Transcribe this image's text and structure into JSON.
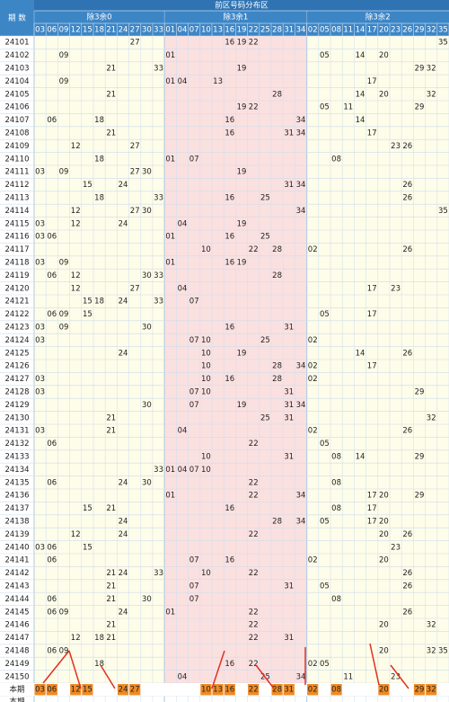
{
  "header": {
    "period_label": "期 数",
    "title": "前区号码分布区",
    "groups": [
      {
        "label": "除3余0",
        "columns": [
          "03",
          "06",
          "09",
          "12",
          "15",
          "18",
          "21",
          "24",
          "27",
          "30",
          "33"
        ]
      },
      {
        "label": "除3余1",
        "columns": [
          "01",
          "04",
          "07",
          "10",
          "13",
          "16",
          "19",
          "22",
          "25",
          "28",
          "31",
          "34"
        ]
      },
      {
        "label": "除3余2",
        "columns": [
          "02",
          "05",
          "08",
          "11",
          "14",
          "17",
          "20",
          "23",
          "26",
          "29",
          "32",
          "35"
        ]
      }
    ]
  },
  "rows": [
    {
      "period": "24101",
      "numbers": [
        "27",
        "16",
        "19",
        "22",
        "35"
      ]
    },
    {
      "period": "24102",
      "numbers": [
        "09",
        "01",
        "05",
        "14",
        "20"
      ]
    },
    {
      "period": "24103",
      "numbers": [
        "21",
        "33",
        "19",
        "29",
        "32"
      ]
    },
    {
      "period": "24104",
      "numbers": [
        "09",
        "01",
        "04",
        "13",
        "17"
      ]
    },
    {
      "period": "24105",
      "numbers": [
        "21",
        "28",
        "14",
        "20",
        "32"
      ]
    },
    {
      "period": "24106",
      "numbers": [
        "19",
        "22",
        "05",
        "11",
        "29"
      ]
    },
    {
      "period": "24107",
      "numbers": [
        "06",
        "18",
        "16",
        "34",
        "14"
      ]
    },
    {
      "period": "24108",
      "numbers": [
        "21",
        "16",
        "31",
        "34",
        "17"
      ]
    },
    {
      "period": "24109",
      "numbers": [
        "12",
        "27",
        "23",
        "26"
      ]
    },
    {
      "period": "24110",
      "numbers": [
        "18",
        "01",
        "07",
        "08"
      ]
    },
    {
      "period": "24111",
      "numbers": [
        "03",
        "09",
        "27",
        "30",
        "19"
      ]
    },
    {
      "period": "24112",
      "numbers": [
        "15",
        "24",
        "31",
        "34",
        "26"
      ]
    },
    {
      "period": "24113",
      "numbers": [
        "18",
        "33",
        "16",
        "25",
        "26"
      ]
    },
    {
      "period": "24114",
      "numbers": [
        "12",
        "27",
        "30",
        "34",
        "35"
      ]
    },
    {
      "period": "24115",
      "numbers": [
        "03",
        "12",
        "24",
        "04",
        "19"
      ]
    },
    {
      "period": "24116",
      "numbers": [
        "03",
        "06",
        "01",
        "16",
        "25"
      ]
    },
    {
      "period": "24117",
      "numbers": [
        "10",
        "22",
        "28",
        "02",
        "26"
      ]
    },
    {
      "period": "24118",
      "numbers": [
        "03",
        "09",
        "01",
        "16",
        "19"
      ]
    },
    {
      "period": "24119",
      "numbers": [
        "06",
        "12",
        "30",
        "33",
        "28"
      ]
    },
    {
      "period": "24120",
      "numbers": [
        "12",
        "27",
        "04",
        "17",
        "23"
      ]
    },
    {
      "period": "24121",
      "numbers": [
        "15",
        "18",
        "24",
        "33",
        "07"
      ]
    },
    {
      "period": "24122",
      "numbers": [
        "06",
        "09",
        "15",
        "05",
        "17"
      ]
    },
    {
      "period": "24123",
      "numbers": [
        "03",
        "09",
        "30",
        "16",
        "31"
      ]
    },
    {
      "period": "24124",
      "numbers": [
        "03",
        "07",
        "10",
        "25",
        "02"
      ]
    },
    {
      "period": "24125",
      "numbers": [
        "24",
        "10",
        "19",
        "14",
        "26"
      ]
    },
    {
      "period": "24126",
      "numbers": [
        "10",
        "28",
        "34",
        "02",
        "17"
      ]
    },
    {
      "period": "24127",
      "numbers": [
        "03",
        "10",
        "16",
        "28",
        "02"
      ]
    },
    {
      "period": "24128",
      "numbers": [
        "03",
        "07",
        "10",
        "31",
        "29"
      ]
    },
    {
      "period": "24129",
      "numbers": [
        "30",
        "07",
        "19",
        "31",
        "34"
      ]
    },
    {
      "period": "24130",
      "numbers": [
        "21",
        "25",
        "31",
        "32"
      ]
    },
    {
      "period": "24131",
      "numbers": [
        "03",
        "21",
        "04",
        "02",
        "26"
      ]
    },
    {
      "period": "24132",
      "numbers": [
        "06",
        "22",
        "05"
      ]
    },
    {
      "period": "24133",
      "numbers": [
        "10",
        "31",
        "08",
        "14",
        "29"
      ]
    },
    {
      "period": "24134",
      "numbers": [
        "33",
        "01",
        "04",
        "07",
        "10"
      ]
    },
    {
      "period": "24135",
      "numbers": [
        "06",
        "24",
        "30",
        "22",
        "08"
      ]
    },
    {
      "period": "24136",
      "numbers": [
        "01",
        "22",
        "34",
        "17",
        "20",
        "29"
      ]
    },
    {
      "period": "24137",
      "numbers": [
        "15",
        "21",
        "16",
        "08",
        "17"
      ]
    },
    {
      "period": "24138",
      "numbers": [
        "24",
        "28",
        "34",
        "05",
        "17",
        "20"
      ]
    },
    {
      "period": "24139",
      "numbers": [
        "12",
        "24",
        "22",
        "20",
        "26"
      ]
    },
    {
      "period": "24140",
      "numbers": [
        "03",
        "06",
        "15",
        "23"
      ]
    },
    {
      "period": "24141",
      "numbers": [
        "06",
        "07",
        "16",
        "02",
        "20"
      ]
    },
    {
      "period": "24142",
      "numbers": [
        "21",
        "24",
        "33",
        "10",
        "22",
        "26"
      ]
    },
    {
      "period": "24143",
      "numbers": [
        "21",
        "07",
        "31",
        "05",
        "26"
      ]
    },
    {
      "period": "24144",
      "numbers": [
        "06",
        "21",
        "30",
        "07",
        "08"
      ]
    },
    {
      "period": "24145",
      "numbers": [
        "06",
        "09",
        "24",
        "01",
        "22",
        "26"
      ]
    },
    {
      "period": "24146",
      "numbers": [
        "21",
        "22",
        "20",
        "32"
      ]
    },
    {
      "period": "24147",
      "numbers": [
        "12",
        "18",
        "21",
        "22",
        "31"
      ]
    },
    {
      "period": "24148",
      "numbers": [
        "06",
        "09",
        "20",
        "32",
        "35"
      ]
    },
    {
      "period": "24149",
      "numbers": [
        "18",
        "16",
        "22",
        "02",
        "05"
      ]
    },
    {
      "period": "24150",
      "numbers": [
        "04",
        "25",
        "34",
        "11",
        "23"
      ]
    }
  ],
  "current": {
    "label": "本期",
    "numbers": [
      "03",
      "06",
      "12",
      "15",
      "24",
      "27",
      "10",
      "13",
      "16",
      "22",
      "28",
      "31",
      "02",
      "08",
      "20",
      "29",
      "32"
    ]
  },
  "next_label": "本期"
}
